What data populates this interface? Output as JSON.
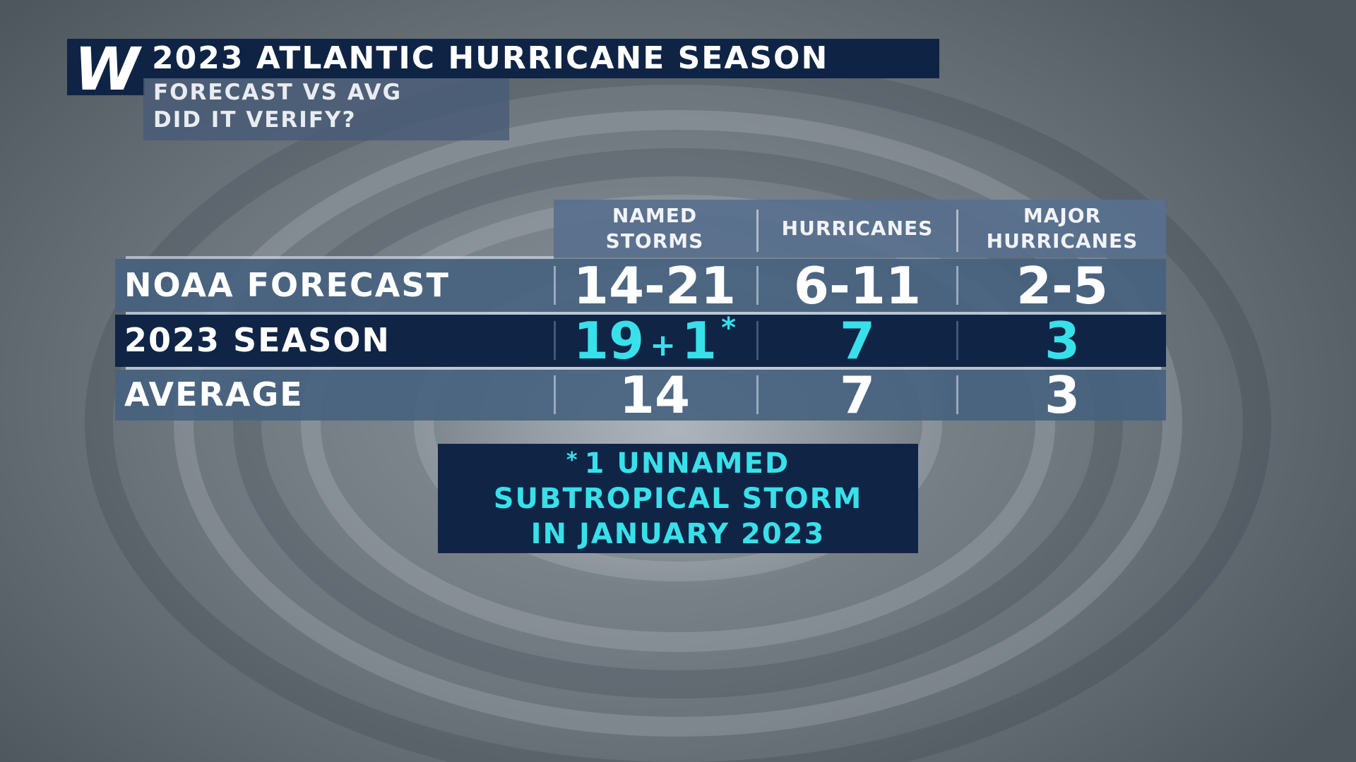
{
  "header": {
    "logo_letter": "W",
    "title": "2023 ATLANTIC HURRICANE SEASON",
    "subtitle_line1": "FORECAST VS AVG",
    "subtitle_line2": "DID IT VERIFY?"
  },
  "table": {
    "columns": [
      {
        "line1": "NAMED",
        "line2": "STORMS"
      },
      {
        "line1": "HURRICANES",
        "line2": ""
      },
      {
        "line1": "MAJOR",
        "line2": "HURRICANES"
      }
    ],
    "rows": [
      {
        "label": "NOAA FORECAST",
        "named_storms": "14-21",
        "hurricanes": "6-11",
        "major_hurricanes": "2-5"
      },
      {
        "label": "2023 SEASON",
        "named_storms": "19",
        "named_storms_plus": "+",
        "named_storms_extra": "1",
        "named_storms_mark": "*",
        "hurricanes": "7",
        "major_hurricanes": "3"
      },
      {
        "label": "AVERAGE",
        "named_storms": "14",
        "hurricanes": "7",
        "major_hurricanes": "3"
      }
    ]
  },
  "footnote": {
    "mark": "*",
    "line1": "1 UNNAMED",
    "line2": "SUBTROPICAL STORM",
    "line3": "IN JANUARY 2023"
  },
  "colors": {
    "navy": "#0f2445",
    "accent_cyan": "#38e0ea",
    "row_blue": "#46627f"
  }
}
